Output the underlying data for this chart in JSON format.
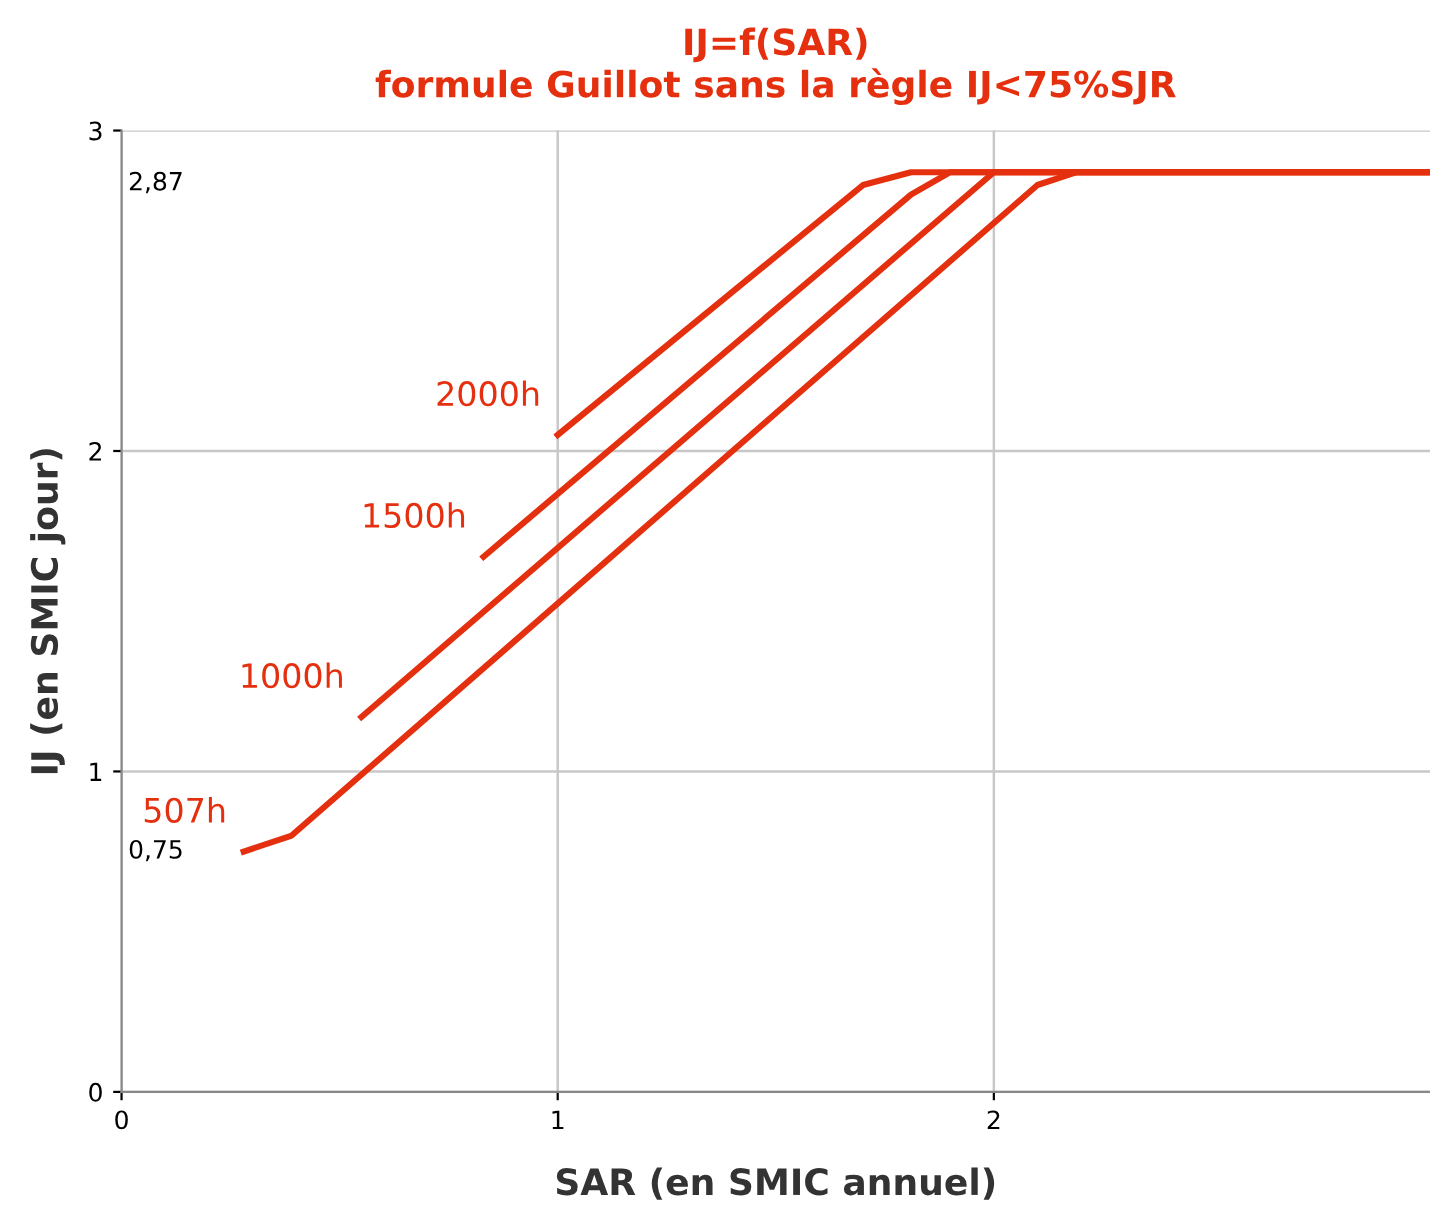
{
  "chart_data": {
    "type": "line",
    "title": "IJ=f(SAR)\nformule Guillot sans la règle IJ<75%SJR",
    "xlabel": "SAR (en SMIC annuel)",
    "ylabel": "IJ (en SMIC jour)",
    "series": [
      {
        "name": "507h",
        "color": "#e5300f",
        "x": [
          0.28,
          0.39,
          2.1,
          2.19,
          3.0
        ],
        "values": [
          0.75,
          0.8,
          2.83,
          2.87,
          2.87
        ]
      },
      {
        "name": "1000h",
        "color": "#e5300f",
        "x": [
          0.55,
          2.0,
          3.0
        ],
        "values": [
          1.17,
          2.87,
          2.87
        ]
      },
      {
        "name": "1500h",
        "color": "#e5300f",
        "x": [
          0.83,
          1.81,
          1.9,
          3.0
        ],
        "values": [
          1.67,
          2.8,
          2.87,
          2.87
        ]
      },
      {
        "name": "2000h",
        "color": "#e5300f",
        "x": [
          1.0,
          1.7,
          1.81,
          3.0
        ],
        "values": [
          2.05,
          2.83,
          2.87,
          2.87
        ]
      }
    ],
    "annotations": [
      "2,87",
      "0,75"
    ],
    "xlim": [
      0,
      3
    ],
    "xticks": [
      0,
      1,
      2
    ],
    "ylim": [
      0,
      3
    ],
    "yticks": [
      0,
      1,
      2,
      3
    ],
    "grid": true,
    "legend": false,
    "marker": "none",
    "line_style": "solid"
  }
}
